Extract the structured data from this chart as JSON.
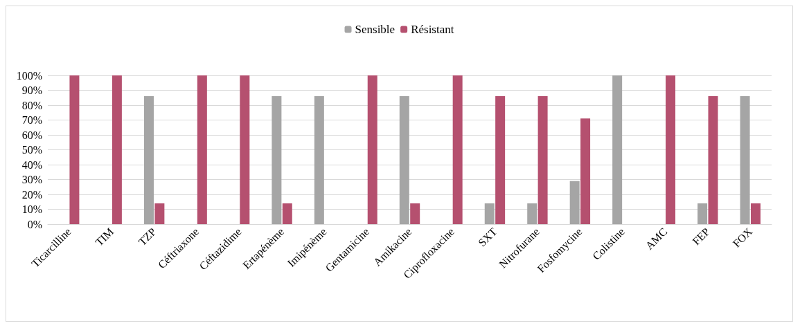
{
  "chart_data": {
    "type": "bar",
    "categories": [
      "Ticarcilline",
      "TIM",
      "TZP",
      "Céftriaxone",
      "Céftazidime",
      "Ertapénème",
      "Imipénème",
      "Gentamicine",
      "Amikacine",
      "Ciprofloxacine",
      "SXT",
      "Nitrofurane",
      "Fosfomycine",
      "Colistine",
      "AMC",
      "FEP",
      "FOX"
    ],
    "series": [
      {
        "name": "Sensible",
        "color": "#a5a5a5",
        "values": [
          0,
          0,
          86,
          0,
          0,
          86,
          86,
          0,
          86,
          0,
          14,
          14,
          29,
          100,
          0,
          14,
          86
        ]
      },
      {
        "name": "Résistant",
        "color": "#b5506f",
        "values": [
          100,
          100,
          14,
          100,
          100,
          14,
          0,
          100,
          14,
          100,
          86,
          86,
          71,
          0,
          100,
          86,
          14
        ]
      }
    ],
    "ylim": [
      0,
      100
    ],
    "yticks": [
      {
        "value": 0,
        "label": "0%"
      },
      {
        "value": 10,
        "label": "10%"
      },
      {
        "value": 20,
        "label": "20%"
      },
      {
        "value": 30,
        "label": "30%"
      },
      {
        "value": 40,
        "label": "40%"
      },
      {
        "value": 50,
        "label": "50%"
      },
      {
        "value": 60,
        "label": "60%"
      },
      {
        "value": 70,
        "label": "70%"
      },
      {
        "value": 80,
        "label": "80%"
      },
      {
        "value": 90,
        "label": "90%"
      },
      {
        "value": 100,
        "label": "100%"
      }
    ],
    "grid": "y",
    "legend": "top"
  }
}
